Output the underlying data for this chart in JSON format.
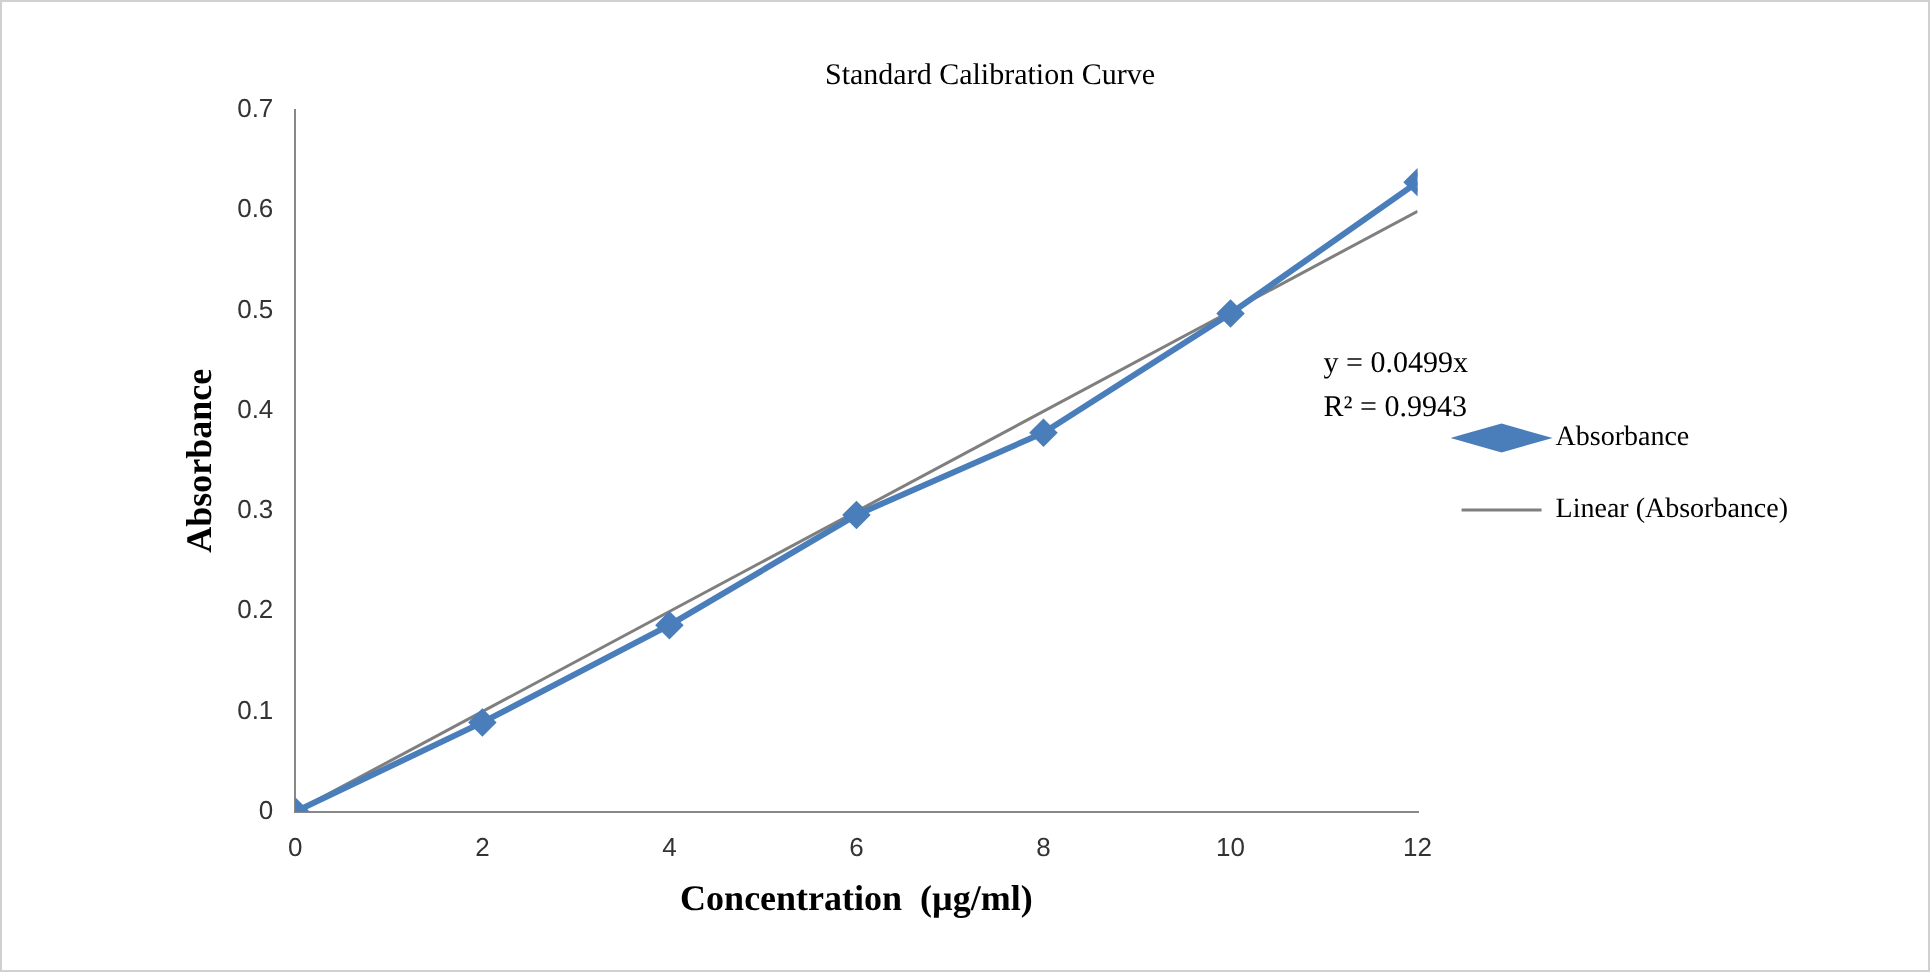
{
  "chart_data": {
    "type": "line",
    "title": "Standard Calibration Curve",
    "xlabel": "Concentration  (µg/ml)",
    "ylabel": "Absorbance",
    "x": [
      0,
      2,
      4,
      6,
      8,
      10,
      12
    ],
    "series": [
      {
        "name": "Absorbance",
        "color": "#4a7ebb",
        "values": [
          0,
          0.089,
          0.186,
          0.296,
          0.378,
          0.497,
          0.628
        ]
      },
      {
        "name": "Linear (Absorbance)",
        "type": "line",
        "color": "#7f7f7f",
        "x": [
          0,
          12
        ],
        "values": [
          0,
          0.599
        ],
        "marker": "none"
      }
    ],
    "annotations": [
      "y = 0.0499x",
      "R² = 0.9943"
    ],
    "xlim": [
      0,
      12
    ],
    "xticks": [
      0,
      2,
      4,
      6,
      8,
      10,
      12
    ],
    "ylim": [
      0,
      0.7
    ],
    "yticks": [
      0,
      0.1,
      0.2,
      0.3,
      0.4,
      0.5,
      0.6,
      0.7
    ],
    "grid": false,
    "legend": "right",
    "marker": "diamond",
    "line_style": "solid"
  }
}
